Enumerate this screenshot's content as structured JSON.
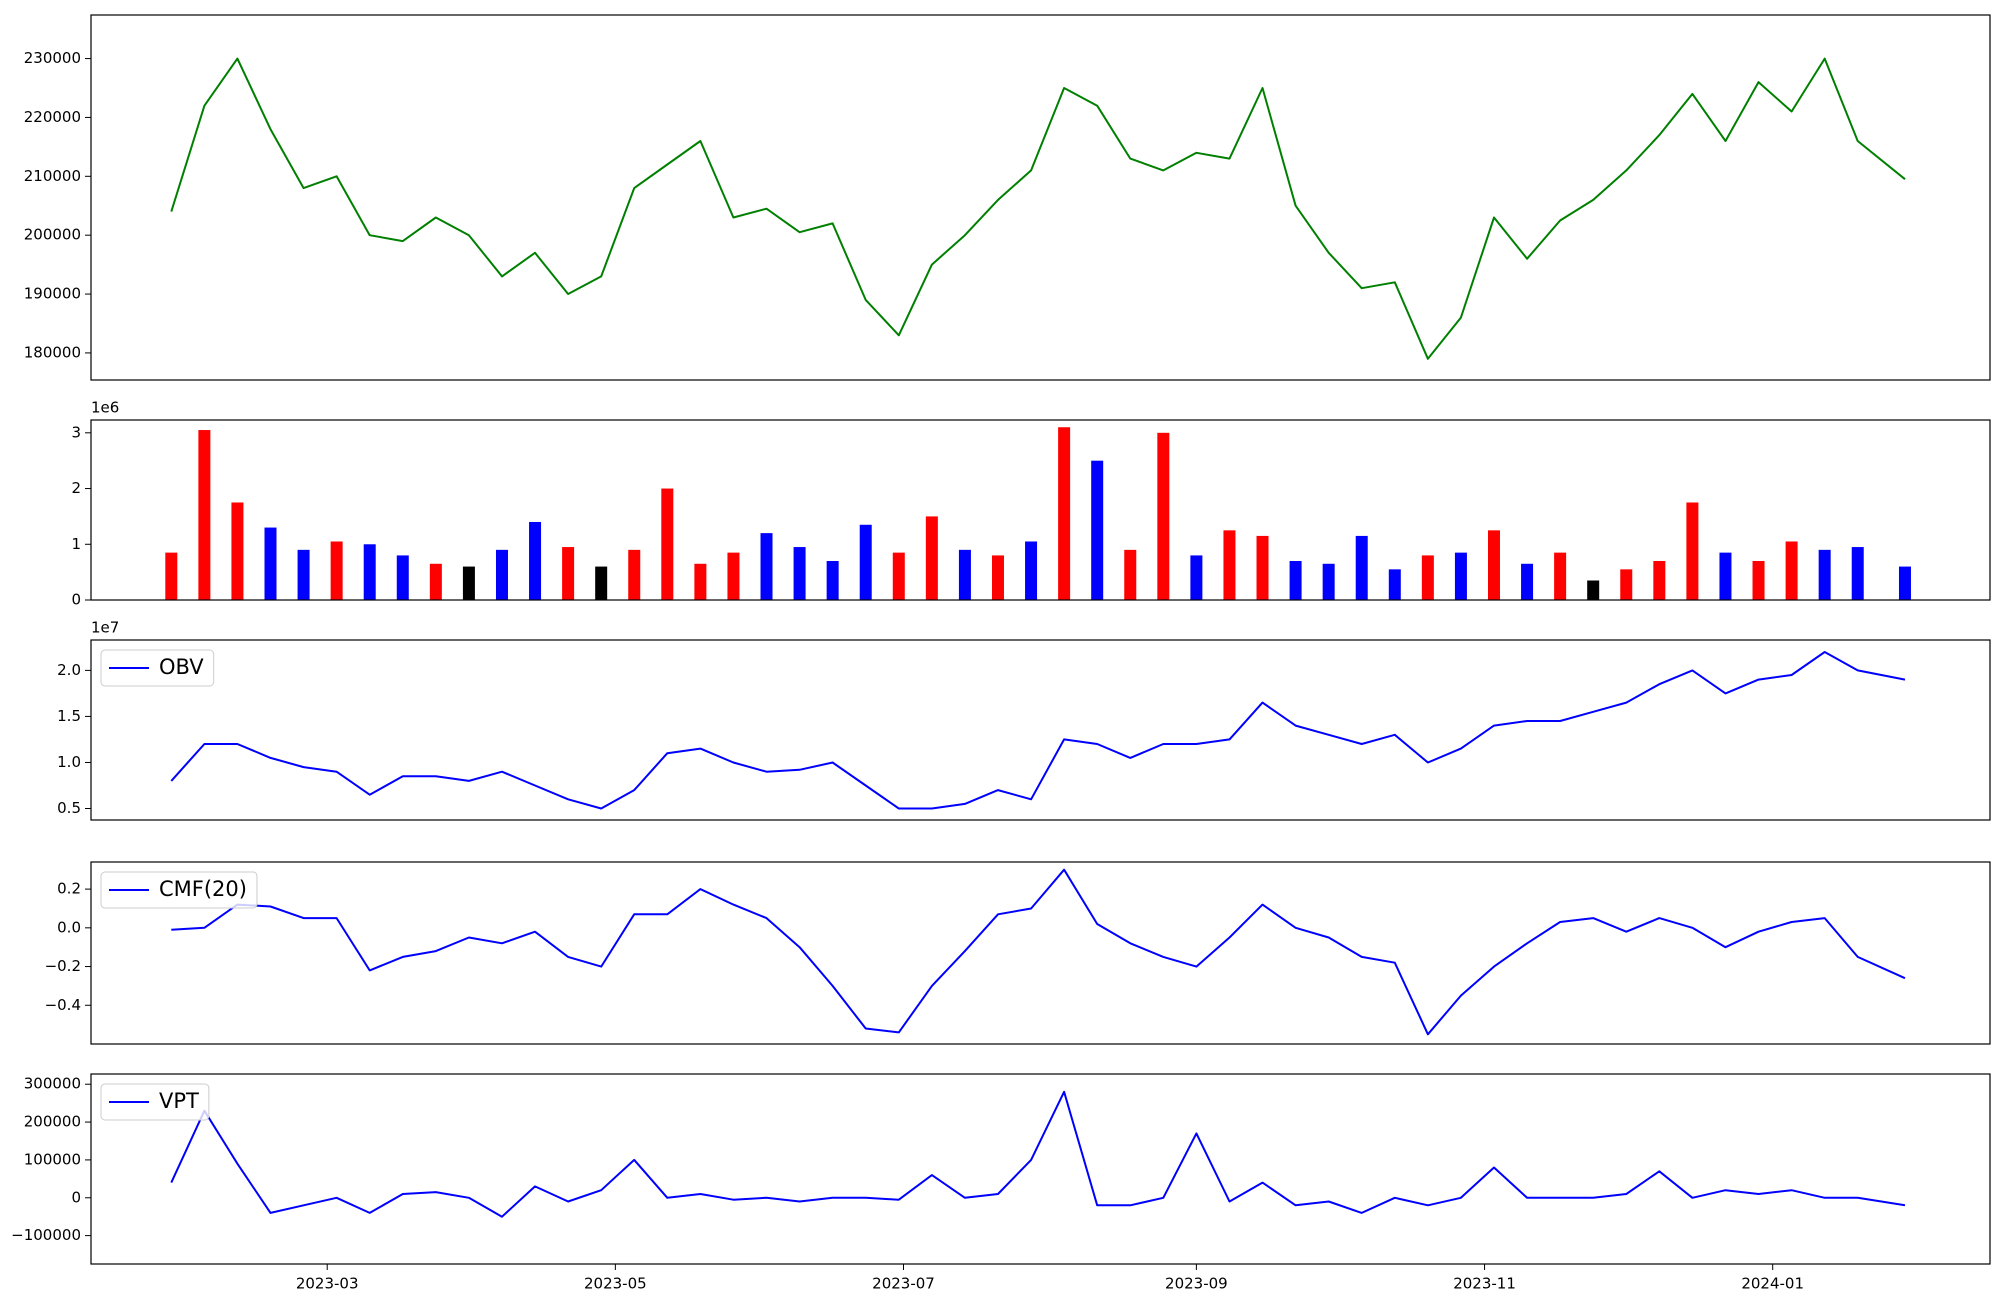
{
  "chart_data": [
    {
      "type": "line",
      "xlim": [
        "2023-01-10",
        "2024-02-16"
      ],
      "ylim": [
        175400,
        237400
      ],
      "yticks": [
        180000,
        190000,
        200000,
        210000,
        220000,
        230000
      ],
      "x": [
        "2023-01-27",
        "2023-02-03",
        "2023-02-10",
        "2023-02-17",
        "2023-02-24",
        "2023-03-03",
        "2023-03-10",
        "2023-03-17",
        "2023-03-24",
        "2023-03-31",
        "2023-04-07",
        "2023-04-14",
        "2023-04-21",
        "2023-04-28",
        "2023-05-05",
        "2023-05-12",
        "2023-05-19",
        "2023-05-26",
        "2023-06-02",
        "2023-06-09",
        "2023-06-16",
        "2023-06-23",
        "2023-06-30",
        "2023-07-07",
        "2023-07-14",
        "2023-07-21",
        "2023-07-28",
        "2023-08-04",
        "2023-08-11",
        "2023-08-18",
        "2023-08-25",
        "2023-09-01",
        "2023-09-08",
        "2023-09-15",
        "2023-09-22",
        "2023-09-29",
        "2023-10-06",
        "2023-10-13",
        "2023-10-20",
        "2023-10-27",
        "2023-11-03",
        "2023-11-10",
        "2023-11-17",
        "2023-11-24",
        "2023-12-01",
        "2023-12-08",
        "2023-12-15",
        "2023-12-22",
        "2023-12-29",
        "2024-01-05",
        "2024-01-12",
        "2024-01-19",
        "2024-01-29"
      ],
      "series": [
        {
          "color": "#008000",
          "values": [
            204000,
            222000,
            230000,
            218000,
            208000,
            210000,
            200000,
            199000,
            203000,
            200000,
            193000,
            197000,
            190000,
            193000,
            208000,
            212000,
            216000,
            203000,
            204500,
            200500,
            202000,
            189000,
            183000,
            195000,
            200000,
            206000,
            211000,
            225000,
            222000,
            213000,
            211000,
            214000,
            213000,
            225000,
            205000,
            197000,
            191000,
            192000,
            179000,
            186000,
            203000,
            196000,
            202500,
            206000,
            211000,
            217000,
            224000,
            216000,
            226000,
            221000,
            230000,
            216000,
            209500
          ]
        }
      ]
    },
    {
      "type": "bar",
      "xlim": [
        "2023-01-10",
        "2024-02-16"
      ],
      "ylim": [
        0,
        3230000
      ],
      "offset_text": "1e6",
      "yticks": [
        {
          "value": 0,
          "label": "0"
        },
        {
          "value": 1000000,
          "label": "1"
        },
        {
          "value": 2000000,
          "label": "2"
        },
        {
          "value": 3000000,
          "label": "3"
        }
      ],
      "x": [
        "2023-01-27",
        "2023-02-03",
        "2023-02-10",
        "2023-02-17",
        "2023-02-24",
        "2023-03-03",
        "2023-03-10",
        "2023-03-17",
        "2023-03-24",
        "2023-03-31",
        "2023-04-07",
        "2023-04-14",
        "2023-04-21",
        "2023-04-28",
        "2023-05-05",
        "2023-05-12",
        "2023-05-19",
        "2023-05-26",
        "2023-06-02",
        "2023-06-09",
        "2023-06-16",
        "2023-06-23",
        "2023-06-30",
        "2023-07-07",
        "2023-07-14",
        "2023-07-21",
        "2023-07-28",
        "2023-08-04",
        "2023-08-11",
        "2023-08-18",
        "2023-08-25",
        "2023-09-01",
        "2023-09-08",
        "2023-09-15",
        "2023-09-22",
        "2023-09-29",
        "2023-10-06",
        "2023-10-13",
        "2023-10-20",
        "2023-10-27",
        "2023-11-03",
        "2023-11-10",
        "2023-11-17",
        "2023-11-24",
        "2023-12-01",
        "2023-12-08",
        "2023-12-15",
        "2023-12-22",
        "2023-12-29",
        "2024-01-05",
        "2024-01-12",
        "2024-01-19",
        "2024-01-29"
      ],
      "values": [
        850000,
        3050000,
        1750000,
        1300000,
        900000,
        1050000,
        1000000,
        800000,
        650000,
        600000,
        900000,
        1400000,
        950000,
        600000,
        900000,
        2000000,
        650000,
        850000,
        1200000,
        950000,
        700000,
        1350000,
        850000,
        1500000,
        900000,
        800000,
        1050000,
        3100000,
        2500000,
        900000,
        3000000,
        800000,
        1250000,
        1150000,
        700000,
        650000,
        1150000,
        550000,
        800000,
        850000,
        1250000,
        650000,
        850000,
        350000,
        550000,
        700000,
        1750000,
        850000,
        700000,
        1050000,
        900000,
        950000,
        600000
      ],
      "colors": [
        "#ff0000",
        "#ff0000",
        "#ff0000",
        "#0000ff",
        "#0000ff",
        "#ff0000",
        "#0000ff",
        "#0000ff",
        "#ff0000",
        "#000000",
        "#0000ff",
        "#0000ff",
        "#ff0000",
        "#000000",
        "#ff0000",
        "#ff0000",
        "#ff0000",
        "#ff0000",
        "#0000ff",
        "#0000ff",
        "#0000ff",
        "#0000ff",
        "#ff0000",
        "#ff0000",
        "#0000ff",
        "#ff0000",
        "#0000ff",
        "#ff0000",
        "#0000ff",
        "#ff0000",
        "#ff0000",
        "#0000ff",
        "#ff0000",
        "#ff0000",
        "#0000ff",
        "#0000ff",
        "#0000ff",
        "#0000ff",
        "#ff0000",
        "#0000ff",
        "#ff0000",
        "#0000ff",
        "#ff0000",
        "#000000",
        "#ff0000",
        "#ff0000",
        "#ff0000",
        "#0000ff",
        "#ff0000",
        "#ff0000",
        "#0000ff",
        "#0000ff",
        "#0000ff"
      ]
    },
    {
      "type": "line",
      "xlim": [
        "2023-01-10",
        "2024-02-16"
      ],
      "ylim": [
        3750000,
        23300000
      ],
      "offset_text": "1e7",
      "legend": "upper left",
      "yticks": [
        {
          "value": 5000000,
          "label": "0.5"
        },
        {
          "value": 10000000,
          "label": "1.0"
        },
        {
          "value": 15000000,
          "label": "1.5"
        },
        {
          "value": 20000000,
          "label": "2.0"
        }
      ],
      "x": [
        "2023-01-27",
        "2023-02-03",
        "2023-02-10",
        "2023-02-17",
        "2023-02-24",
        "2023-03-03",
        "2023-03-10",
        "2023-03-17",
        "2023-03-24",
        "2023-03-31",
        "2023-04-07",
        "2023-04-14",
        "2023-04-21",
        "2023-04-28",
        "2023-05-05",
        "2023-05-12",
        "2023-05-19",
        "2023-05-26",
        "2023-06-02",
        "2023-06-09",
        "2023-06-16",
        "2023-06-23",
        "2023-06-30",
        "2023-07-07",
        "2023-07-14",
        "2023-07-21",
        "2023-07-28",
        "2023-08-04",
        "2023-08-11",
        "2023-08-18",
        "2023-08-25",
        "2023-09-01",
        "2023-09-08",
        "2023-09-15",
        "2023-09-22",
        "2023-09-29",
        "2023-10-06",
        "2023-10-13",
        "2023-10-20",
        "2023-10-27",
        "2023-11-03",
        "2023-11-10",
        "2023-11-17",
        "2023-11-24",
        "2023-12-01",
        "2023-12-08",
        "2023-12-15",
        "2023-12-22",
        "2023-12-29",
        "2024-01-05",
        "2024-01-12",
        "2024-01-19",
        "2024-01-29"
      ],
      "series": [
        {
          "name": "OBV",
          "color": "#0000ff",
          "values": [
            8000000,
            12000000,
            12000000,
            10500000,
            9500000,
            9000000,
            6500000,
            8500000,
            8500000,
            8000000,
            9000000,
            7500000,
            6000000,
            5000000,
            7000000,
            11000000,
            11500000,
            10000000,
            9000000,
            9200000,
            10000000,
            7500000,
            5000000,
            5000000,
            5500000,
            7000000,
            6000000,
            12500000,
            12000000,
            10500000,
            12000000,
            12000000,
            12500000,
            16500000,
            14000000,
            13000000,
            12000000,
            13000000,
            10000000,
            11500000,
            14000000,
            14500000,
            14500000,
            15500000,
            16500000,
            18500000,
            20000000,
            17500000,
            19000000,
            19500000,
            22000000,
            20000000,
            19000000
          ]
        }
      ]
    },
    {
      "type": "line",
      "xlim": [
        "2023-01-10",
        "2024-02-16"
      ],
      "ylim": [
        -0.6,
        0.34
      ],
      "legend": "upper left",
      "yticks": [
        {
          "value": -0.4,
          "label": "−0.4"
        },
        {
          "value": -0.2,
          "label": "−0.2"
        },
        {
          "value": 0,
          "label": "0.0"
        },
        {
          "value": 0.2,
          "label": "0.2"
        }
      ],
      "x": [
        "2023-01-27",
        "2023-02-03",
        "2023-02-10",
        "2023-02-17",
        "2023-02-24",
        "2023-03-03",
        "2023-03-10",
        "2023-03-17",
        "2023-03-24",
        "2023-03-31",
        "2023-04-07",
        "2023-04-14",
        "2023-04-21",
        "2023-04-28",
        "2023-05-05",
        "2023-05-12",
        "2023-05-19",
        "2023-05-26",
        "2023-06-02",
        "2023-06-09",
        "2023-06-16",
        "2023-06-23",
        "2023-06-30",
        "2023-07-07",
        "2023-07-14",
        "2023-07-21",
        "2023-07-28",
        "2023-08-04",
        "2023-08-11",
        "2023-08-18",
        "2023-08-25",
        "2023-09-01",
        "2023-09-08",
        "2023-09-15",
        "2023-09-22",
        "2023-09-29",
        "2023-10-06",
        "2023-10-13",
        "2023-10-20",
        "2023-10-27",
        "2023-11-03",
        "2023-11-10",
        "2023-11-17",
        "2023-11-24",
        "2023-12-01",
        "2023-12-08",
        "2023-12-15",
        "2023-12-22",
        "2023-12-29",
        "2024-01-05",
        "2024-01-12",
        "2024-01-19",
        "2024-01-29"
      ],
      "series": [
        {
          "name": "CMF(20)",
          "color": "#0000ff",
          "values": [
            -0.01,
            0,
            0.12,
            0.11,
            0.05,
            0.05,
            -0.22,
            -0.15,
            -0.12,
            -0.05,
            -0.08,
            -0.02,
            -0.15,
            -0.2,
            0.07,
            0.07,
            0.2,
            0.12,
            0.05,
            -0.1,
            -0.3,
            -0.52,
            -0.54,
            -0.3,
            -0.12,
            0.07,
            0.1,
            0.3,
            0.02,
            -0.08,
            -0.15,
            -0.2,
            -0.05,
            0.12,
            0,
            -0.05,
            -0.15,
            -0.18,
            -0.55,
            -0.35,
            -0.2,
            -0.08,
            0.03,
            0.05,
            -0.02,
            0.05,
            0,
            -0.1,
            -0.02,
            0.03,
            0.05,
            -0.15,
            -0.26
          ]
        }
      ]
    },
    {
      "type": "line",
      "xlim": [
        "2023-01-10",
        "2024-02-16"
      ],
      "ylim": [
        -175000,
        327000
      ],
      "legend": "upper left",
      "yticks": [
        {
          "value": -100000,
          "label": "−100000"
        },
        0,
        100000,
        200000,
        300000
      ],
      "xticks": [
        {
          "value": "2023-03-01",
          "label": "2023-03"
        },
        {
          "value": "2023-05-01",
          "label": "2023-05"
        },
        {
          "value": "2023-07-01",
          "label": "2023-07"
        },
        {
          "value": "2023-09-01",
          "label": "2023-09"
        },
        {
          "value": "2023-11-01",
          "label": "2023-11"
        },
        {
          "value": "2024-01-01",
          "label": "2024-01"
        }
      ],
      "x": [
        "2023-01-27",
        "2023-02-03",
        "2023-02-10",
        "2023-02-17",
        "2023-02-24",
        "2023-03-03",
        "2023-03-10",
        "2023-03-17",
        "2023-03-24",
        "2023-03-31",
        "2023-04-07",
        "2023-04-14",
        "2023-04-21",
        "2023-04-28",
        "2023-05-05",
        "2023-05-12",
        "2023-05-19",
        "2023-05-26",
        "2023-06-02",
        "2023-06-09",
        "2023-06-16",
        "2023-06-23",
        "2023-06-30",
        "2023-07-07",
        "2023-07-14",
        "2023-07-21",
        "2023-07-28",
        "2023-08-04",
        "2023-08-11",
        "2023-08-18",
        "2023-08-25",
        "2023-09-01",
        "2023-09-08",
        "2023-09-15",
        "2023-09-22",
        "2023-09-29",
        "2023-10-06",
        "2023-10-13",
        "2023-10-20",
        "2023-10-27",
        "2023-11-03",
        "2023-11-10",
        "2023-11-17",
        "2023-11-24",
        "2023-12-01",
        "2023-12-08",
        "2023-12-15",
        "2023-12-22",
        "2023-12-29",
        "2024-01-05",
        "2024-01-12",
        "2024-01-19",
        "2024-01-29"
      ],
      "series": [
        {
          "name": "VPT",
          "color": "#0000ff",
          "values": [
            40000,
            230000,
            90000,
            -40000,
            -20000,
            0,
            -40000,
            10000,
            15000,
            0,
            -50000,
            30000,
            -10000,
            20000,
            100000,
            0,
            10000,
            -5000,
            0,
            -10000,
            0,
            0,
            -5000,
            60000,
            0,
            10000,
            100000,
            280000,
            -20000,
            -20000,
            0,
            170000,
            -10000,
            40000,
            -20000,
            -10000,
            -40000,
            0,
            -20000,
            0,
            80000,
            0,
            0,
            0,
            10000,
            70000,
            0,
            20000,
            10000,
            20000,
            0,
            0,
            -20000
          ]
        }
      ]
    }
  ]
}
